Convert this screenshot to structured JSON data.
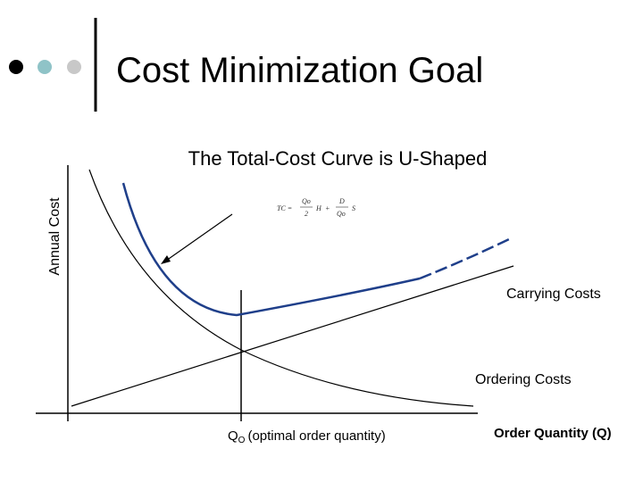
{
  "header": {
    "title": "Cost Minimization Goal"
  },
  "diagram": {
    "subtitle": "The Total-Cost Curve is U-Shaped",
    "y_axis_label": "Annual Cost",
    "x_axis_label": "Order Quantity (Q)",
    "formula": {
      "lhs": "TC =",
      "num1": "Qo",
      "den1": "2",
      "h": "H",
      "plus": "+",
      "num2": "D",
      "den2": "Qo",
      "s": "S"
    },
    "carrying_label": "Carrying Costs",
    "ordering_label": "Ordering Costs",
    "optimal": {
      "symbol": "Q",
      "subscript": "O",
      "text": "(optimal order quantity)"
    }
  }
}
